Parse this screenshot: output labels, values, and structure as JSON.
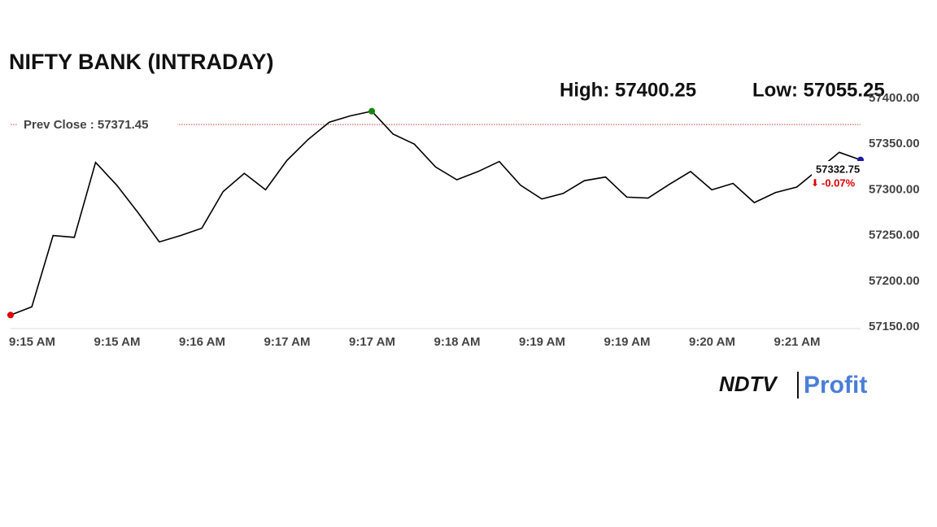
{
  "chart_data": {
    "type": "line",
    "title": "NIFTY BANK (INTRADAY)",
    "high_label": "High: 57400.25",
    "low_label": "Low: 57055.25",
    "prev_close": 57371.45,
    "prev_close_label": "Prev Close : 57371.45",
    "change_label": "-0.07%",
    "categories": [
      "9:15 AM",
      null,
      null,
      null,
      "9:15 AM",
      null,
      null,
      null,
      "9:16 AM",
      null,
      null,
      null,
      "9:17 AM",
      null,
      null,
      null,
      "9:17 AM",
      null,
      null,
      null,
      "9:18 AM",
      null,
      null,
      null,
      "9:19 AM",
      null,
      null,
      null,
      "9:19 AM",
      null,
      null,
      null,
      "9:20 AM",
      null,
      null,
      null,
      "9:21 AM",
      null,
      null,
      null,
      null
    ],
    "values": [
      57163,
      57172,
      57250,
      57248,
      57330,
      57305,
      57275,
      57243,
      57250,
      57258,
      57298,
      57318,
      57300,
      57332,
      57355,
      57374,
      57381,
      57386,
      57361,
      57350,
      57325,
      57311,
      57320,
      57331,
      57305,
      57290,
      57296,
      57310,
      57314,
      57292,
      57291,
      57306,
      57320,
      57300,
      57307,
      57286,
      57297,
      57303,
      57322,
      57341,
      57332.75
    ],
    "color": "#000000",
    "start_color": "#e00000",
    "high_color": "#138808",
    "end_color": "#1a1aa0",
    "prev_close_color": "#d04040",
    "ylim": [
      57150,
      57400
    ],
    "yticks": [
      {
        "value": 57150,
        "label": "57150.00"
      },
      {
        "value": 57200,
        "label": "57200.00"
      },
      {
        "value": 57250,
        "label": "57250.00"
      },
      {
        "value": 57300,
        "label": "57300.00"
      },
      {
        "value": 57350,
        "label": "57350.00"
      },
      {
        "value": 57400,
        "label": "57400.00"
      }
    ],
    "logo": {
      "left": "NDTV",
      "right": "Profit"
    }
  }
}
